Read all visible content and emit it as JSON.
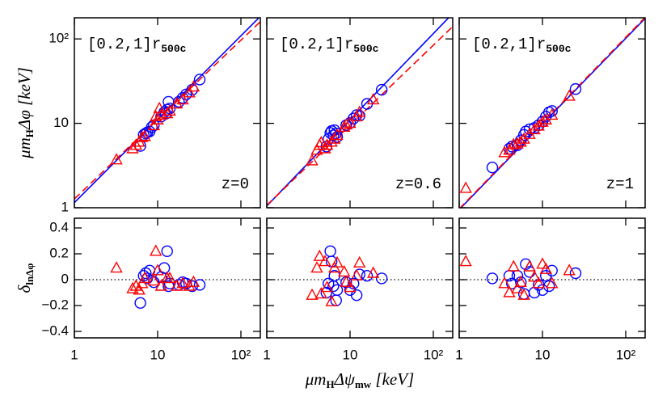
{
  "chart_data": [
    {
      "type": "scatter",
      "xscale": "log",
      "yscale": "log",
      "xlim": [
        1,
        171
      ],
      "ylim": [
        1,
        178
      ],
      "xticks": [
        1,
        10,
        {
          "value": 100,
          "label": "10²"
        }
      ],
      "yticks": [
        1,
        10,
        {
          "value": 100,
          "label": "10²"
        }
      ],
      "xticklabels": false,
      "yticklabels": true,
      "ylabel": [
        "μm",
        "H",
        "Δφ  [keV]"
      ],
      "annotation": [
        "[0.2,1]r",
        "500c"
      ],
      "corner_label": "z=0",
      "series": [
        {
          "color": "#0000ff",
          "line": "solid",
          "x": [
            1,
            171
          ],
          "values": [
            1.15,
            185
          ]
        },
        {
          "color": "#ff0000",
          "line": "dashed",
          "x": [
            1,
            171
          ],
          "values": [
            1.27,
            160
          ]
        },
        {
          "color": "#0000ff",
          "marker": "circle",
          "x": [
            6.2,
            6.8,
            7.2,
            7.5,
            8,
            9,
            11,
            12,
            13,
            13.5,
            14,
            18,
            20,
            22,
            26,
            32,
            8.5,
            12.5
          ],
          "values": [
            5.4,
            7.3,
            7.6,
            7.8,
            8,
            9.5,
            12,
            13.5,
            14.5,
            18,
            15,
            18,
            20,
            22,
            25,
            33,
            9,
            13
          ]
        },
        {
          "color": "#ff0000",
          "marker": "triangle",
          "x": [
            3.2,
            5,
            5.5,
            6,
            6.5,
            7,
            9,
            9.5,
            10,
            11,
            13,
            14,
            17,
            20,
            24,
            27,
            10.5
          ],
          "values": [
            3.7,
            5,
            5.5,
            6,
            6.8,
            7,
            9.4,
            12,
            11,
            12.5,
            13,
            14,
            17,
            19,
            23,
            27,
            15
          ]
        }
      ]
    },
    {
      "type": "scatter",
      "xscale": "log",
      "yscale": "log",
      "xlim": [
        1,
        171
      ],
      "ylim": [
        1,
        178
      ],
      "xticks": [
        1,
        10,
        100
      ],
      "yticks": [
        1,
        10,
        100
      ],
      "xticklabels": false,
      "yticklabels": false,
      "annotation": [
        "[0.2,1]r",
        "500c"
      ],
      "corner_label": "z=0.6",
      "series": [
        {
          "color": "#0000ff",
          "line": "solid",
          "x": [
            1,
            171
          ],
          "values": [
            1.05,
            200
          ]
        },
        {
          "color": "#ff0000",
          "line": "dashed",
          "x": [
            1,
            171
          ],
          "values": [
            1.07,
            140
          ]
        },
        {
          "color": "#0000ff",
          "marker": "circle",
          "x": [
            5.5,
            5.8,
            6,
            6.3,
            6.5,
            6.8,
            7,
            5.2,
            9,
            10,
            12,
            13,
            16,
            24,
            11
          ],
          "values": [
            6.5,
            7.7,
            8.1,
            7.2,
            8.3,
            7.6,
            6.9,
            5.3,
            9.5,
            10.1,
            12.5,
            12.3,
            17,
            25,
            11.4
          ]
        },
        {
          "color": "#ff0000",
          "marker": "triangle",
          "x": [
            3.5,
            4,
            4.3,
            4.5,
            5,
            5.3,
            6,
            6.5,
            7,
            8.5,
            9,
            10,
            12,
            13,
            19
          ],
          "values": [
            3.6,
            4.8,
            5.5,
            5.9,
            5,
            5.5,
            6,
            6.5,
            7.2,
            9,
            9.6,
            10,
            12,
            13.5,
            19
          ]
        }
      ]
    },
    {
      "type": "scatter",
      "xscale": "log",
      "yscale": "log",
      "xlim": [
        1,
        171
      ],
      "ylim": [
        1,
        178
      ],
      "xticks": [
        1,
        10,
        100
      ],
      "yticks": [
        1,
        10,
        100
      ],
      "xticklabels": false,
      "yticklabels": false,
      "annotation": [
        "[0.2,1]r",
        "500c"
      ],
      "corner_label": "z=1",
      "series": [
        {
          "color": "#0000ff",
          "line": "solid",
          "x": [
            1,
            171
          ],
          "values": [
            0.95,
            175
          ]
        },
        {
          "color": "#ff0000",
          "line": "dashed",
          "x": [
            1,
            171
          ],
          "values": [
            0.97,
            180
          ]
        },
        {
          "color": "#0000ff",
          "marker": "circle",
          "x": [
            2.5,
            4,
            4.3,
            5,
            5.5,
            6,
            6.3,
            7,
            8,
            10,
            11,
            12,
            13,
            25,
            9
          ],
          "values": [
            3,
            5,
            5.3,
            5.5,
            6.3,
            7.3,
            8,
            8.5,
            8.8,
            10.5,
            12,
            13.5,
            14,
            25.5,
            9.5
          ]
        },
        {
          "color": "#ff0000",
          "marker": "triangle",
          "x": [
            1.2,
            3.5,
            4,
            4.5,
            5,
            5.5,
            6,
            7,
            8,
            9,
            10,
            11,
            13,
            21
          ],
          "values": [
            1.7,
            4.5,
            4.8,
            5.6,
            5.7,
            6,
            6.5,
            7.4,
            8.4,
            9.3,
            10.3,
            11,
            12.5,
            21
          ]
        }
      ]
    },
    {
      "type": "scatter",
      "xscale": "log",
      "yscale": "linear",
      "xlim": [
        1,
        171
      ],
      "ylim": [
        -0.45,
        0.475
      ],
      "xticks": [
        1,
        10,
        {
          "value": 100,
          "label": "10²"
        }
      ],
      "yticks": [
        {
          "value": -0.4,
          "label": "−0.4"
        },
        {
          "value": -0.2,
          "label": "−0.2"
        },
        0,
        0.2,
        0.4
      ],
      "xticklabels": true,
      "yticklabels": true,
      "hline": 0,
      "ylabel": [
        "δ",
        "lnΔφ"
      ],
      "series": [
        {
          "color": "#0000ff",
          "marker": "circle",
          "x": [
            6.2,
            6.8,
            7.2,
            7.5,
            8,
            9,
            11,
            12,
            13,
            13.5,
            14,
            18,
            20,
            22,
            26,
            32
          ],
          "values": [
            -0.18,
            0.03,
            0.05,
            0.01,
            0.07,
            -0.02,
            0.02,
            0.09,
            0.22,
            -0.05,
            -0.03,
            -0.04,
            -0.02,
            -0.03,
            -0.05,
            -0.04
          ]
        },
        {
          "color": "#ff0000",
          "marker": "triangle",
          "x": [
            3.2,
            5,
            5.5,
            6,
            6.5,
            7,
            9,
            9.5,
            10,
            11,
            13,
            14,
            17,
            20,
            24,
            27
          ],
          "values": [
            0.09,
            -0.07,
            -0.05,
            -0.08,
            -0.03,
            0.01,
            -0.01,
            0.22,
            0.07,
            -0.05,
            0.01,
            0.01,
            -0.05,
            -0.03,
            -0.05,
            -0.02
          ]
        }
      ]
    },
    {
      "type": "scatter",
      "xscale": "log",
      "yscale": "linear",
      "xlim": [
        1,
        171
      ],
      "ylim": [
        -0.45,
        0.475
      ],
      "xticks": [
        1,
        10,
        {
          "value": 100,
          "label": "10²"
        }
      ],
      "yticks": [
        -0.4,
        -0.2,
        0,
        0.2,
        0.4
      ],
      "xticklabels": true,
      "yticklabels": false,
      "hline": 0,
      "xlabel": [
        "μm",
        "H",
        "Δψ",
        "mw",
        "  [keV]"
      ],
      "series": [
        {
          "color": "#0000ff",
          "marker": "circle",
          "x": [
            5.5,
            5.8,
            6,
            6.3,
            6.5,
            6.8,
            7,
            5.2,
            9,
            10,
            12,
            13,
            16,
            24,
            11
          ],
          "values": [
            -0.03,
            0.22,
            0.14,
            -0.05,
            0.03,
            -0.16,
            -0.08,
            -0.1,
            -0.02,
            -0.08,
            -0.12,
            0.04,
            0.03,
            0.01,
            -0.03
          ]
        },
        {
          "color": "#ff0000",
          "marker": "triangle",
          "x": [
            3.5,
            4,
            4.3,
            4.5,
            5,
            5.3,
            6,
            6.5,
            7,
            8.5,
            9,
            10,
            12,
            13,
            19
          ],
          "values": [
            -0.12,
            0.09,
            0.18,
            -0.11,
            0.14,
            -0.06,
            -0.17,
            0.09,
            0.13,
            0.06,
            -0.02,
            -0.06,
            0.03,
            0.13,
            0.05
          ]
        }
      ]
    },
    {
      "type": "scatter",
      "xscale": "log",
      "yscale": "linear",
      "xlim": [
        1,
        171
      ],
      "ylim": [
        -0.45,
        0.475
      ],
      "xticks": [
        1,
        10,
        {
          "value": 100,
          "label": "10²"
        }
      ],
      "yticks": [
        -0.4,
        -0.2,
        0,
        0.2,
        0.4
      ],
      "xticklabels": true,
      "yticklabels": false,
      "hline": 0,
      "series": [
        {
          "color": "#0000ff",
          "marker": "circle",
          "x": [
            2.5,
            4,
            4.3,
            5,
            5.5,
            6,
            6.3,
            7,
            8,
            10,
            11,
            12,
            13,
            25,
            9
          ],
          "values": [
            0.01,
            0.03,
            -0.03,
            0.03,
            -0.02,
            -0.11,
            0.12,
            0.06,
            -0.1,
            -0.08,
            0.03,
            -0.05,
            0.07,
            0.05,
            -0.04
          ]
        },
        {
          "color": "#ff0000",
          "marker": "triangle",
          "x": [
            1.2,
            3.5,
            4,
            4.5,
            5,
            5.5,
            6,
            7,
            8,
            9,
            10,
            11,
            13,
            21
          ],
          "values": [
            0.14,
            -0.03,
            -0.1,
            0.1,
            -0.07,
            -0.02,
            -0.12,
            0.1,
            0.02,
            -0.03,
            0.12,
            0.08,
            -0.03,
            0.07
          ]
        }
      ]
    }
  ]
}
